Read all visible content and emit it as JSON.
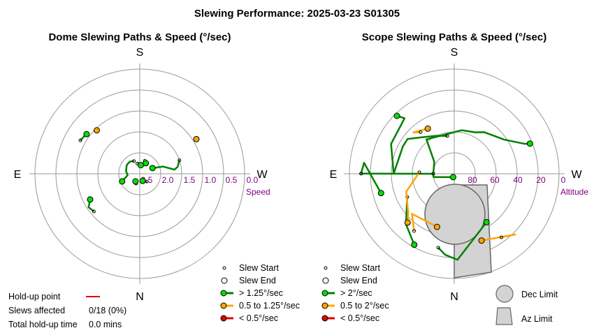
{
  "title": "Slewing Performance: 2025-03-23 S01305",
  "colors": {
    "green": "#008000",
    "green_marker": "#00e000",
    "orange": "#ffa500",
    "red": "#e00000",
    "grid": "#999999",
    "axis_label": "#800080",
    "limit_fill": "#d3d3d3",
    "limit_stroke": "#666666"
  },
  "compass": {
    "north": "N",
    "south": "S",
    "east": "E",
    "west": "W"
  },
  "legend": {
    "slew_start": "Slew Start",
    "slew_end": "Slew End",
    "dome_fast": "> 1.25°/sec",
    "dome_mid": "0.5 to 1.25°/sec",
    "dome_slow": "< 0.5°/sec",
    "scope_fast": "> 2°/sec",
    "scope_mid": "0.5 to 2°/sec",
    "scope_slow": "< 0.5°/sec",
    "dec_limit": "Dec Limit",
    "az_limit": "Az Limit"
  },
  "stats": {
    "holdup_label": "Hold-up point",
    "slews_label": "Slews affected",
    "slews_value": "0/18 (0%)",
    "total_label": "Total hold-up time",
    "total_value": "0.0 mins"
  },
  "chart_data": [
    {
      "type": "polar-scatter",
      "title": "Dome Slewing Paths & Speed (°/sec)",
      "radial_axis": {
        "label": "Speed",
        "ticks": [
          "2.5",
          "2.0",
          "1.5",
          "1.0",
          "0.5",
          "0.0"
        ],
        "range": [
          3.0,
          0.0
        ],
        "grid": true
      },
      "paths": [
        {
          "speed_class": "fast",
          "points": [
            [
              0.33,
              1.8
            ],
            [
              0.18,
              1.9
            ],
            [
              0.12,
              2.0
            ],
            [
              0.3,
              2.3
            ],
            [
              0.42,
              2.6
            ]
          ]
        },
        {
          "speed_class": "fast",
          "points": [
            [
              1.2,
              2.6
            ],
            [
              1.05,
              2.65
            ]
          ]
        },
        {
          "speed_class": "fast",
          "points": [
            [
              1.8,
              2.7
            ],
            [
              1.55,
              2.7
            ],
            [
              1.45,
              2.75
            ]
          ]
        },
        {
          "speed_class": "fast",
          "points": [
            [
              2.0,
              2.6
            ],
            [
              2.25,
              2.55
            ],
            [
              2.55,
              2.55
            ],
            [
              2.95,
              2.6
            ],
            [
              3.25,
              2.65
            ],
            [
              3.55,
              2.45
            ]
          ]
        },
        {
          "speed_class": "fast",
          "points": [
            [
              5.45,
              2.7
            ],
            [
              5.2,
              2.75
            ],
            [
              5.1,
              2.78
            ]
          ]
        },
        {
          "speed_class": "fast",
          "points": [
            [
              4.35,
              2.7
            ],
            [
              4.2,
              2.75
            ]
          ]
        },
        {
          "speed_class": "fast",
          "points": [
            [
              3.83,
              1.3
            ],
            [
              3.72,
              1.25
            ],
            [
              3.62,
              1.4
            ]
          ]
        },
        {
          "speed_class": "fast",
          "points": [
            [
              2.63,
              1.05
            ],
            [
              2.55,
              1.08
            ],
            [
              2.5,
              1.1
            ]
          ]
        },
        {
          "speed_class": "mid",
          "points": [
            [
              0.55,
              1.1
            ]
          ]
        },
        {
          "speed_class": "mid",
          "points": [
            [
              2.35,
              1.25
            ]
          ]
        }
      ]
    },
    {
      "type": "polar-scatter",
      "title": "Scope Slewing Paths & Speed (°/sec)",
      "radial_axis": {
        "label": "Altitude",
        "ticks": [
          "80",
          "60",
          "40",
          "20",
          "0"
        ],
        "range": [
          90,
          0
        ],
        "grid": true
      },
      "paths": [
        {
          "speed_class": "fast",
          "points": [
            [
              3.14,
              10
            ],
            [
              3.14,
              72
            ],
            [
              3.3,
              72
            ],
            [
              4.4,
              87
            ]
          ]
        },
        {
          "speed_class": "fast",
          "points": [
            [
              3.14,
              10
            ],
            [
              3.02,
              12
            ],
            [
              3.4,
              25
            ]
          ]
        },
        {
          "speed_class": "fast",
          "points": [
            [
              3.14,
              72
            ],
            [
              2.6,
              70
            ],
            [
              2.25,
              52
            ],
            [
              1.4,
              52
            ],
            [
              1.1,
              50
            ],
            [
              0.95,
              46
            ],
            [
              0.6,
              38
            ],
            [
              0.4,
              24
            ],
            [
              0.38,
              20
            ]
          ]
        },
        {
          "speed_class": "fast",
          "points": [
            [
              1.75,
              57
            ],
            [
              2.0,
              54
            ],
            [
              2.3,
              48
            ],
            [
              2.5,
              40
            ],
            [
              2.65,
              40
            ],
            [
              3.14,
              38
            ],
            [
              2.7,
              30
            ],
            [
              2.3,
              26
            ],
            [
              2.35,
              20
            ]
          ]
        },
        {
          "speed_class": "fast",
          "points": [
            [
              3.6,
              45
            ],
            [
              3.95,
              30
            ],
            [
              4.2,
              20
            ]
          ]
        },
        {
          "speed_class": "fast",
          "points": [
            [
              4.5,
              25
            ],
            [
              4.6,
              20
            ],
            [
              4.75,
              16
            ],
            [
              5.3,
              40
            ]
          ]
        },
        {
          "speed_class": "mid",
          "points": [
            [
              3.1,
              60
            ],
            [
              3.5,
              46
            ],
            [
              3.85,
              38
            ],
            [
              3.95,
              32
            ]
          ]
        },
        {
          "speed_class": "mid",
          "points": [
            [
              2.25,
              44
            ],
            [
              2.35,
              40
            ],
            [
              2.1,
              45
            ]
          ]
        },
        {
          "speed_class": "mid",
          "points": [
            [
              4.1,
              30
            ],
            [
              3.9,
              40
            ],
            [
              4.4,
              42
            ]
          ]
        },
        {
          "speed_class": "mid",
          "points": [
            [
              5.35,
              22
            ],
            [
              5.5,
              16
            ],
            [
              5.1,
              28
            ]
          ]
        }
      ],
      "limits": {
        "dec_limit": "Dec Limit",
        "az_limit": "Az Limit"
      }
    }
  ]
}
